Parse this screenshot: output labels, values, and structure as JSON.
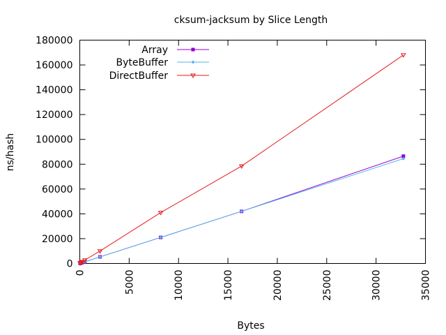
{
  "chart_data": {
    "type": "line",
    "title": "cksum-jacksum by Slice Length",
    "xlabel": "Bytes",
    "ylabel": "ns/hash",
    "xlim": [
      0,
      35000
    ],
    "ylim": [
      0,
      180000
    ],
    "xticks": [
      0,
      5000,
      10000,
      15000,
      20000,
      25000,
      30000,
      35000
    ],
    "yticks": [
      0,
      20000,
      40000,
      60000,
      80000,
      100000,
      120000,
      140000,
      160000,
      180000
    ],
    "grid": false,
    "legend_position": "top-left",
    "series": [
      {
        "name": "Array",
        "color": "#9400d3",
        "marker": "square",
        "points": [
          [
            32,
            140
          ],
          [
            64,
            220
          ],
          [
            128,
            380
          ],
          [
            256,
            700
          ],
          [
            512,
            1350
          ],
          [
            2048,
            5300
          ],
          [
            8192,
            21000
          ],
          [
            16384,
            42000
          ],
          [
            32768,
            86500
          ]
        ]
      },
      {
        "name": "ByteBuffer",
        "color": "#56b4e9",
        "marker": "diamond",
        "points": [
          [
            32,
            140
          ],
          [
            64,
            220
          ],
          [
            128,
            380
          ],
          [
            256,
            700
          ],
          [
            512,
            1350
          ],
          [
            2048,
            5300
          ],
          [
            8192,
            21000
          ],
          [
            16384,
            42000
          ],
          [
            32768,
            84500
          ]
        ]
      },
      {
        "name": "DirectBuffer",
        "color": "#e41a1c",
        "marker": "triangle-down",
        "points": [
          [
            32,
            250
          ],
          [
            64,
            450
          ],
          [
            128,
            800
          ],
          [
            256,
            1400
          ],
          [
            512,
            2700
          ],
          [
            2048,
            10000
          ],
          [
            8192,
            41000
          ],
          [
            16384,
            78500
          ],
          [
            32768,
            168000
          ]
        ]
      }
    ]
  }
}
